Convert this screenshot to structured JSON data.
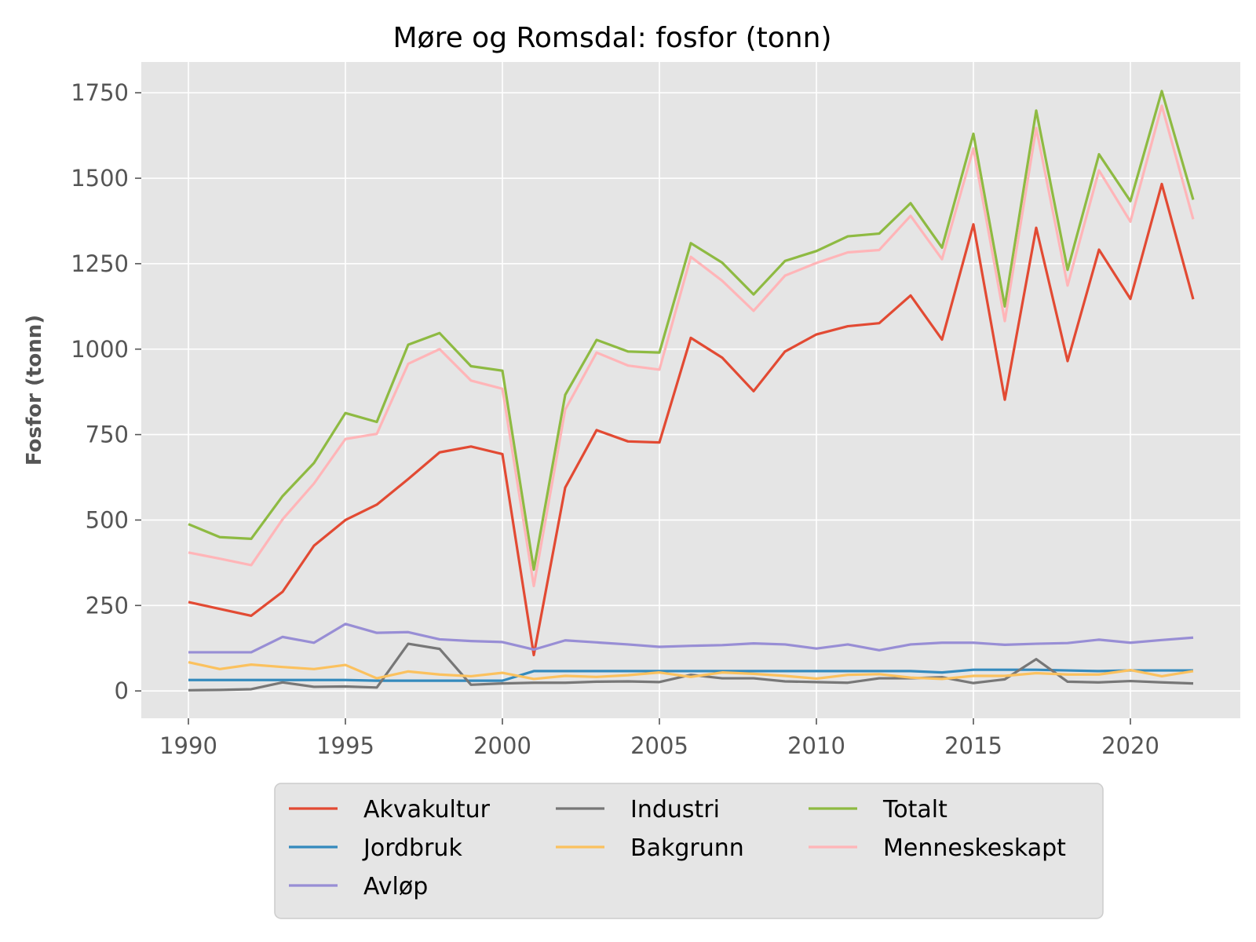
{
  "chart_data": {
    "type": "line",
    "title": "Møre og Romsdal: fosfor (tonn)",
    "xlabel": "",
    "ylabel": "Fosfor (tonn)",
    "xlim": [
      1988.5,
      2023.5
    ],
    "ylim": [
      -80,
      1840
    ],
    "xticks": [
      1990,
      1995,
      2000,
      2005,
      2010,
      2015,
      2020
    ],
    "yticks": [
      0,
      250,
      500,
      750,
      1000,
      1250,
      1500,
      1750
    ],
    "grid": true,
    "legend_position": "lower center, below plot",
    "x": [
      1990,
      1991,
      1992,
      1993,
      1994,
      1995,
      1996,
      1997,
      1998,
      1999,
      2000,
      2001,
      2002,
      2003,
      2004,
      2005,
      2006,
      2007,
      2008,
      2009,
      2010,
      2011,
      2012,
      2013,
      2014,
      2015,
      2016,
      2017,
      2018,
      2019,
      2020,
      2021,
      2022
    ],
    "series": [
      {
        "name": "Akvakultur",
        "color": "#E24A33",
        "values": [
          260,
          240,
          220,
          290,
          425,
          500,
          545,
          620,
          698,
          715,
          693,
          105,
          595,
          763,
          730,
          727,
          1033,
          975,
          877,
          993,
          1043,
          1067,
          1076,
          1157,
          1028,
          1365,
          852,
          1355,
          965,
          1291,
          1147,
          1483,
          1146
        ]
      },
      {
        "name": "Jordbruk",
        "color": "#348ABD",
        "values": [
          32,
          32,
          32,
          32,
          32,
          32,
          30,
          30,
          30,
          30,
          30,
          58,
          58,
          58,
          58,
          58,
          58,
          58,
          58,
          58,
          58,
          58,
          58,
          58,
          54,
          62,
          62,
          62,
          60,
          58,
          60,
          60,
          60
        ]
      },
      {
        "name": "Avløp",
        "color": "#988ED5",
        "values": [
          113,
          113,
          113,
          158,
          141,
          196,
          170,
          172,
          151,
          146,
          143,
          121,
          148,
          142,
          136,
          129,
          132,
          134,
          139,
          136,
          124,
          136,
          119,
          136,
          141,
          141,
          135,
          138,
          140,
          150,
          141,
          149,
          156
        ]
      },
      {
        "name": "Industri",
        "color": "#777777",
        "values": [
          2,
          3,
          5,
          25,
          12,
          13,
          10,
          138,
          123,
          18,
          22,
          24,
          24,
          27,
          28,
          26,
          47,
          37,
          37,
          28,
          26,
          24,
          37,
          37,
          40,
          23,
          34,
          93,
          27,
          25,
          29,
          25,
          22
        ]
      },
      {
        "name": "Bakgrunn",
        "color": "#FBC15E",
        "values": [
          84,
          64,
          77,
          70,
          64,
          76,
          37,
          57,
          48,
          43,
          53,
          35,
          44,
          41,
          46,
          54,
          41,
          54,
          50,
          44,
          36,
          47,
          49,
          39,
          35,
          44,
          44,
          52,
          48,
          48,
          61,
          43,
          58
        ]
      },
      {
        "name": "Totalt",
        "color": "#8EBA42",
        "values": [
          488,
          450,
          445,
          570,
          667,
          813,
          787,
          1013,
          1047,
          950,
          937,
          355,
          866,
          1027,
          993,
          990,
          1310,
          1253,
          1160,
          1258,
          1287,
          1330,
          1338,
          1427,
          1297,
          1630,
          1125,
          1698,
          1232,
          1570,
          1433,
          1755,
          1437
        ]
      },
      {
        "name": "Menneskeskapt",
        "color": "#FFB5B8",
        "values": [
          405,
          387,
          368,
          502,
          607,
          737,
          752,
          957,
          1000,
          908,
          884,
          307,
          823,
          990,
          952,
          940,
          1270,
          1200,
          1112,
          1215,
          1252,
          1283,
          1290,
          1390,
          1263,
          1587,
          1082,
          1647,
          1186,
          1523,
          1373,
          1712,
          1380
        ]
      }
    ],
    "legend_columns": [
      [
        "Akvakultur",
        "Jordbruk",
        "Avløp"
      ],
      [
        "Industri",
        "Bakgrunn"
      ],
      [
        "Totalt",
        "Menneskeskapt"
      ]
    ]
  }
}
